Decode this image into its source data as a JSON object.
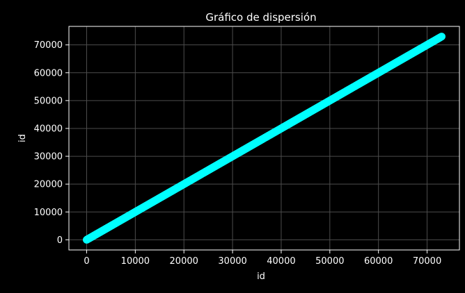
{
  "chart_data": {
    "type": "scatter",
    "title": "Gráfico de dispersión",
    "xlabel": "id",
    "ylabel": "id",
    "xlim": [
      -3650,
      76650
    ],
    "ylim": [
      -3650,
      76650
    ],
    "xticks": [
      "0",
      "10000",
      "20000",
      "30000",
      "40000",
      "50000",
      "60000",
      "70000"
    ],
    "yticks": [
      "0",
      "10000",
      "20000",
      "30000",
      "40000",
      "50000",
      "60000",
      "70000"
    ],
    "grid": true,
    "series": [
      {
        "x_start": 0,
        "x_end": 73000,
        "relation": "y = x",
        "color": "#00ffff"
      }
    ],
    "colors": {
      "background": "#000000",
      "marker": "#00ffff",
      "grid": "#4d4d4d",
      "text": "#ffffff"
    }
  }
}
